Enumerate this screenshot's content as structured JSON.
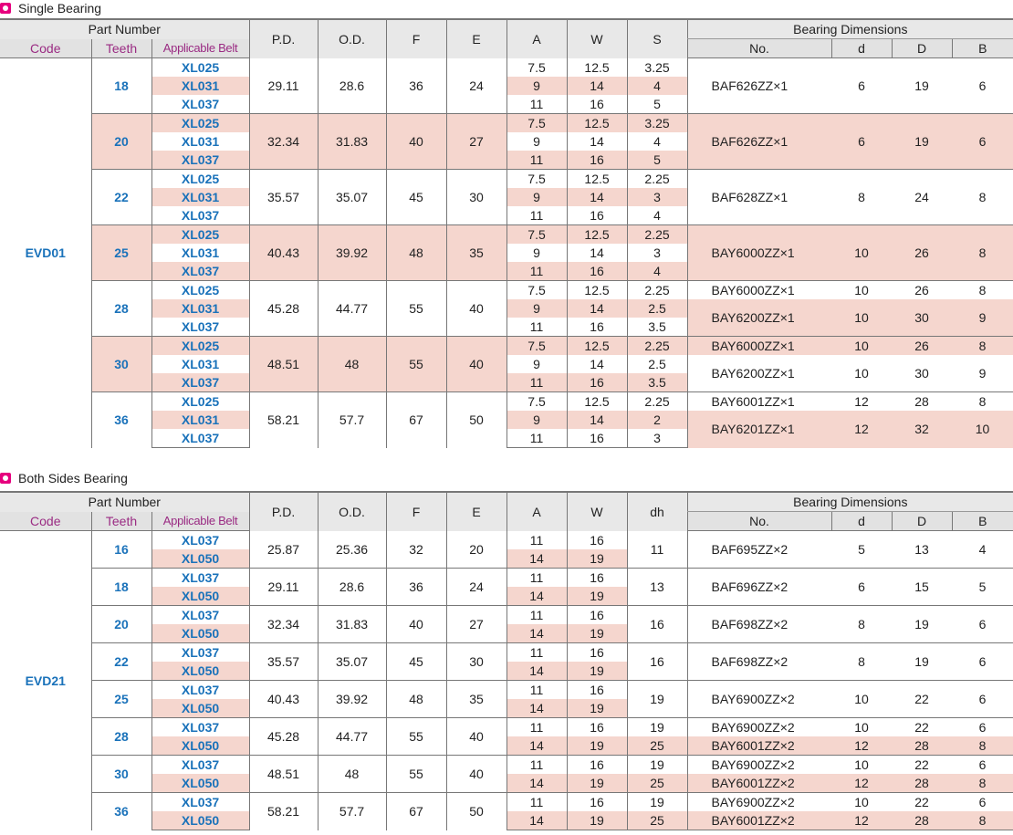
{
  "single": {
    "title": "Single Bearing",
    "header": {
      "part_number": "Part Number",
      "code": "Code",
      "teeth": "Teeth",
      "belt": "Applicable Belt",
      "pd": "P.D.",
      "od": "O.D.",
      "f": "F",
      "e": "E",
      "a": "A",
      "w": "W",
      "s": "S",
      "bearing_dimensions": "Bearing Dimensions",
      "no": "No.",
      "d": "d",
      "D": "D",
      "b": "B"
    },
    "code": "EVD01",
    "groups": [
      {
        "teeth": "18",
        "pd": "29.11",
        "od": "28.6",
        "f": "36",
        "e": "24",
        "rows": [
          {
            "belt": "XL025",
            "a": "7.5",
            "w": "12.5",
            "s": "3.25"
          },
          {
            "belt": "XL031",
            "a": "9",
            "w": "14",
            "s": "4"
          },
          {
            "belt": "XL037",
            "a": "11",
            "w": "16",
            "s": "5"
          }
        ],
        "bearings": [
          {
            "no": "BAF626ZZ×1",
            "d": "6",
            "D": "19",
            "b": "6"
          }
        ]
      },
      {
        "teeth": "20",
        "pd": "32.34",
        "od": "31.83",
        "f": "40",
        "e": "27",
        "rows": [
          {
            "belt": "XL025",
            "a": "7.5",
            "w": "12.5",
            "s": "3.25"
          },
          {
            "belt": "XL031",
            "a": "9",
            "w": "14",
            "s": "4"
          },
          {
            "belt": "XL037",
            "a": "11",
            "w": "16",
            "s": "5"
          }
        ],
        "bearings": [
          {
            "no": "BAF626ZZ×1",
            "d": "6",
            "D": "19",
            "b": "6"
          }
        ]
      },
      {
        "teeth": "22",
        "pd": "35.57",
        "od": "35.07",
        "f": "45",
        "e": "30",
        "rows": [
          {
            "belt": "XL025",
            "a": "7.5",
            "w": "12.5",
            "s": "2.25"
          },
          {
            "belt": "XL031",
            "a": "9",
            "w": "14",
            "s": "3"
          },
          {
            "belt": "XL037",
            "a": "11",
            "w": "16",
            "s": "4"
          }
        ],
        "bearings": [
          {
            "no": "BAF628ZZ×1",
            "d": "8",
            "D": "24",
            "b": "8"
          }
        ]
      },
      {
        "teeth": "25",
        "pd": "40.43",
        "od": "39.92",
        "f": "48",
        "e": "35",
        "rows": [
          {
            "belt": "XL025",
            "a": "7.5",
            "w": "12.5",
            "s": "2.25"
          },
          {
            "belt": "XL031",
            "a": "9",
            "w": "14",
            "s": "3"
          },
          {
            "belt": "XL037",
            "a": "11",
            "w": "16",
            "s": "4"
          }
        ],
        "bearings": [
          {
            "no": "BAY6000ZZ×1",
            "d": "10",
            "D": "26",
            "b": "8"
          }
        ]
      },
      {
        "teeth": "28",
        "pd": "45.28",
        "od": "44.77",
        "f": "55",
        "e": "40",
        "rows": [
          {
            "belt": "XL025",
            "a": "7.5",
            "w": "12.5",
            "s": "2.25"
          },
          {
            "belt": "XL031",
            "a": "9",
            "w": "14",
            "s": "2.5"
          },
          {
            "belt": "XL037",
            "a": "11",
            "w": "16",
            "s": "3.5"
          }
        ],
        "bearings": [
          {
            "no": "BAY6000ZZ×1",
            "d": "10",
            "D": "26",
            "b": "8"
          },
          {
            "no": "BAY6200ZZ×1",
            "d": "10",
            "D": "30",
            "b": "9"
          }
        ]
      },
      {
        "teeth": "30",
        "pd": "48.51",
        "od": "48",
        "f": "55",
        "e": "40",
        "rows": [
          {
            "belt": "XL025",
            "a": "7.5",
            "w": "12.5",
            "s": "2.25"
          },
          {
            "belt": "XL031",
            "a": "9",
            "w": "14",
            "s": "2.5"
          },
          {
            "belt": "XL037",
            "a": "11",
            "w": "16",
            "s": "3.5"
          }
        ],
        "bearings": [
          {
            "no": "BAY6000ZZ×1",
            "d": "10",
            "D": "26",
            "b": "8"
          },
          {
            "no": "BAY6200ZZ×1",
            "d": "10",
            "D": "30",
            "b": "9"
          }
        ]
      },
      {
        "teeth": "36",
        "pd": "58.21",
        "od": "57.7",
        "f": "67",
        "e": "50",
        "rows": [
          {
            "belt": "XL025",
            "a": "7.5",
            "w": "12.5",
            "s": "2.25"
          },
          {
            "belt": "XL031",
            "a": "9",
            "w": "14",
            "s": "2"
          },
          {
            "belt": "XL037",
            "a": "11",
            "w": "16",
            "s": "3"
          }
        ],
        "bearings": [
          {
            "no": "BAY6001ZZ×1",
            "d": "12",
            "D": "28",
            "b": "8"
          },
          {
            "no": "BAY6201ZZ×1",
            "d": "12",
            "D": "32",
            "b": "10"
          }
        ]
      }
    ]
  },
  "both": {
    "title": "Both Sides Bearing",
    "header": {
      "part_number": "Part Number",
      "code": "Code",
      "teeth": "Teeth",
      "belt": "Applicable Belt",
      "pd": "P.D.",
      "od": "O.D.",
      "f": "F",
      "e": "E",
      "a": "A",
      "w": "W",
      "dh": "dh",
      "bearing_dimensions": "Bearing Dimensions",
      "no": "No.",
      "d": "d",
      "D": "D",
      "b": "B"
    },
    "code": "EVD21",
    "groups": [
      {
        "teeth": "16",
        "pd": "25.87",
        "od": "25.36",
        "f": "32",
        "e": "20",
        "rows": [
          {
            "belt": "XL037",
            "a": "11",
            "w": "16"
          },
          {
            "belt": "XL050",
            "a": "14",
            "w": "19"
          }
        ],
        "split": false,
        "dh": [
          "11"
        ],
        "bearings": [
          {
            "no": "BAF695ZZ×2",
            "d": "5",
            "D": "13",
            "b": "4"
          }
        ]
      },
      {
        "teeth": "18",
        "pd": "29.11",
        "od": "28.6",
        "f": "36",
        "e": "24",
        "rows": [
          {
            "belt": "XL037",
            "a": "11",
            "w": "16"
          },
          {
            "belt": "XL050",
            "a": "14",
            "w": "19"
          }
        ],
        "split": false,
        "dh": [
          "13"
        ],
        "bearings": [
          {
            "no": "BAF696ZZ×2",
            "d": "6",
            "D": "15",
            "b": "5"
          }
        ]
      },
      {
        "teeth": "20",
        "pd": "32.34",
        "od": "31.83",
        "f": "40",
        "e": "27",
        "rows": [
          {
            "belt": "XL037",
            "a": "11",
            "w": "16"
          },
          {
            "belt": "XL050",
            "a": "14",
            "w": "19"
          }
        ],
        "split": false,
        "dh": [
          "16"
        ],
        "bearings": [
          {
            "no": "BAF698ZZ×2",
            "d": "8",
            "D": "19",
            "b": "6"
          }
        ]
      },
      {
        "teeth": "22",
        "pd": "35.57",
        "od": "35.07",
        "f": "45",
        "e": "30",
        "rows": [
          {
            "belt": "XL037",
            "a": "11",
            "w": "16"
          },
          {
            "belt": "XL050",
            "a": "14",
            "w": "19"
          }
        ],
        "split": false,
        "dh": [
          "16"
        ],
        "bearings": [
          {
            "no": "BAF698ZZ×2",
            "d": "8",
            "D": "19",
            "b": "6"
          }
        ]
      },
      {
        "teeth": "25",
        "pd": "40.43",
        "od": "39.92",
        "f": "48",
        "e": "35",
        "rows": [
          {
            "belt": "XL037",
            "a": "11",
            "w": "16"
          },
          {
            "belt": "XL050",
            "a": "14",
            "w": "19"
          }
        ],
        "split": false,
        "dh": [
          "19"
        ],
        "bearings": [
          {
            "no": "BAY6900ZZ×2",
            "d": "10",
            "D": "22",
            "b": "6"
          }
        ]
      },
      {
        "teeth": "28",
        "pd": "45.28",
        "od": "44.77",
        "f": "55",
        "e": "40",
        "rows": [
          {
            "belt": "XL037",
            "a": "11",
            "w": "16"
          },
          {
            "belt": "XL050",
            "a": "14",
            "w": "19"
          }
        ],
        "split": true,
        "dh": [
          "19",
          "25"
        ],
        "bearings": [
          {
            "no": "BAY6900ZZ×2",
            "d": "10",
            "D": "22",
            "b": "6"
          },
          {
            "no": "BAY6001ZZ×2",
            "d": "12",
            "D": "28",
            "b": "8"
          }
        ]
      },
      {
        "teeth": "30",
        "pd": "48.51",
        "od": "48",
        "f": "55",
        "e": "40",
        "rows": [
          {
            "belt": "XL037",
            "a": "11",
            "w": "16"
          },
          {
            "belt": "XL050",
            "a": "14",
            "w": "19"
          }
        ],
        "split": true,
        "dh": [
          "19",
          "25"
        ],
        "bearings": [
          {
            "no": "BAY6900ZZ×2",
            "d": "10",
            "D": "22",
            "b": "6"
          },
          {
            "no": "BAY6001ZZ×2",
            "d": "12",
            "D": "28",
            "b": "8"
          }
        ]
      },
      {
        "teeth": "36",
        "pd": "58.21",
        "od": "57.7",
        "f": "67",
        "e": "50",
        "rows": [
          {
            "belt": "XL037",
            "a": "11",
            "w": "16"
          },
          {
            "belt": "XL050",
            "a": "14",
            "w": "19"
          }
        ],
        "split": true,
        "dh": [
          "19",
          "25"
        ],
        "bearings": [
          {
            "no": "BAY6900ZZ×2",
            "d": "10",
            "D": "22",
            "b": "6"
          },
          {
            "no": "BAY6001ZZ×2",
            "d": "12",
            "D": "28",
            "b": "8"
          }
        ]
      }
    ]
  }
}
